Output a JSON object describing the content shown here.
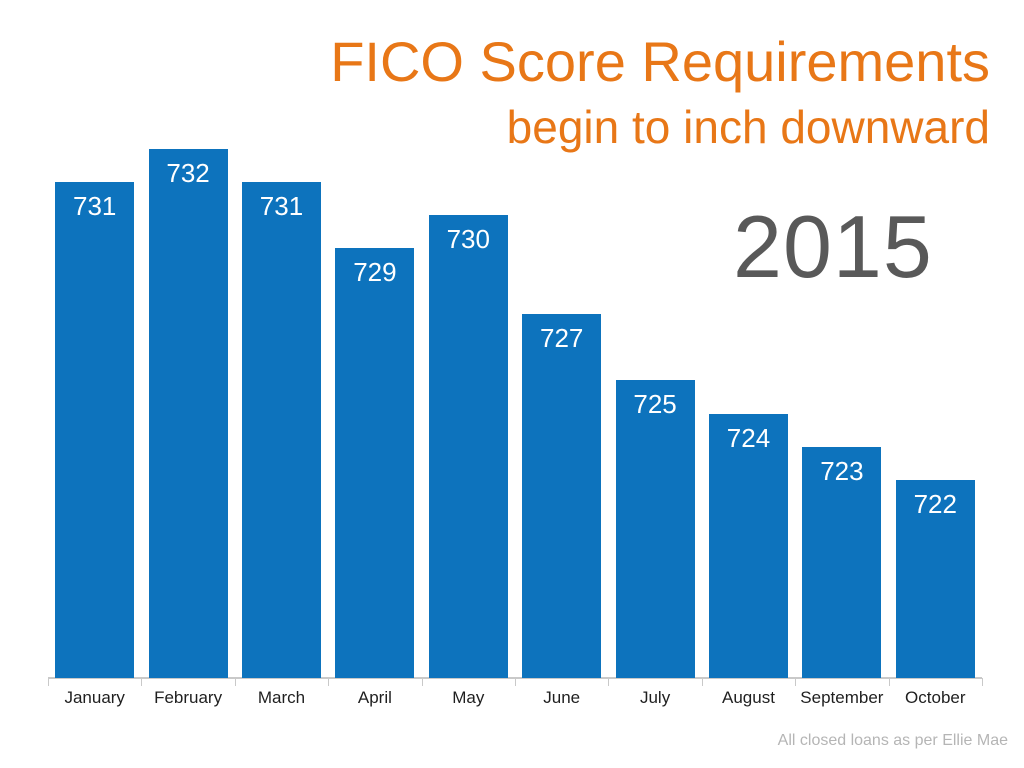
{
  "title": {
    "line1": "FICO Score Requirements",
    "line2": "begin to inch downward",
    "year": "2015"
  },
  "footer": {
    "source": "All closed loans as per Ellie Mae"
  },
  "colors": {
    "bar_blue": "#0d73bd",
    "title_orange": "#e87717",
    "year_gray": "#595959",
    "axis_gray": "#c9c9c9",
    "month_label": "#1f1f1f",
    "value_label": "#ffffff",
    "footer_gray": "#b5b5b5"
  },
  "chart_data": {
    "type": "bar",
    "title": "FICO Score Requirements",
    "subtitle": "begin to inch downward",
    "year": "2015",
    "categories": [
      "January",
      "February",
      "March",
      "April",
      "May",
      "June",
      "July",
      "August",
      "September",
      "October"
    ],
    "values": [
      731,
      732,
      731,
      729,
      730,
      727,
      725,
      724,
      723,
      722
    ],
    "xlabel": "",
    "ylabel": "",
    "ylim": [
      716,
      734
    ],
    "grid": false,
    "legend": false,
    "value_labels": "inside-top",
    "source_note": "All closed loans as per Ellie Mae"
  }
}
